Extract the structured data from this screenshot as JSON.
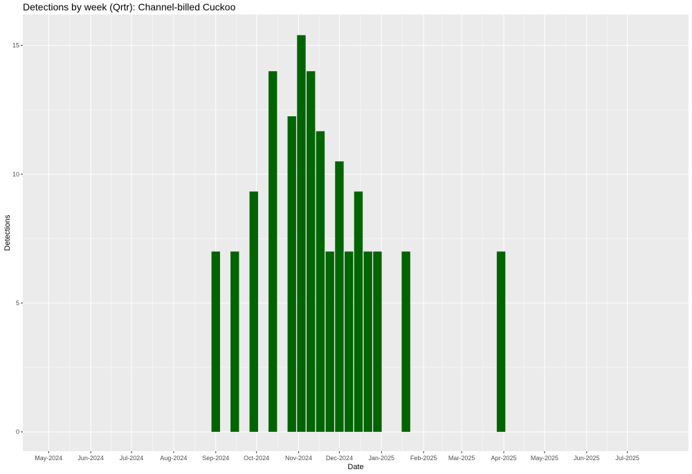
{
  "chart_data": {
    "type": "bar",
    "title": "Detections by week (Qrtr): Channel-billed Cuckoo",
    "xlabel": "Date",
    "ylabel": "Detections",
    "xlim": [
      "2024-04-12",
      "2025-08-15"
    ],
    "ylim": [
      -0.75,
      16.2
    ],
    "y_ticks": [
      0,
      5,
      10,
      15
    ],
    "x_ticks": [
      {
        "date": "2024-05-01",
        "label": "May-2024"
      },
      {
        "date": "2024-06-01",
        "label": "Jun-2024"
      },
      {
        "date": "2024-07-01",
        "label": "Jul-2024"
      },
      {
        "date": "2024-08-01",
        "label": "Aug-2024"
      },
      {
        "date": "2024-09-01",
        "label": "Sep-2024"
      },
      {
        "date": "2024-10-01",
        "label": "Oct-2024"
      },
      {
        "date": "2024-11-01",
        "label": "Nov-2024"
      },
      {
        "date": "2024-12-01",
        "label": "Dec-2024"
      },
      {
        "date": "2025-01-01",
        "label": "Jan-2025"
      },
      {
        "date": "2025-02-01",
        "label": "Feb-2025"
      },
      {
        "date": "2025-03-01",
        "label": "Mar-2025"
      },
      {
        "date": "2025-04-01",
        "label": "Apr-2025"
      },
      {
        "date": "2025-05-01",
        "label": "May-2025"
      },
      {
        "date": "2025-06-01",
        "label": "Jun-2025"
      },
      {
        "date": "2025-07-01",
        "label": "Jul-2025"
      }
    ],
    "grid": true,
    "bar_color": "#006400",
    "panel_background": "#ebebeb",
    "grid_color": "#ffffff",
    "bar_width_days": 6.3,
    "x": [
      "2024-09-01",
      "2024-09-15",
      "2024-09-29",
      "2024-10-13",
      "2024-10-27",
      "2024-11-03",
      "2024-11-10",
      "2024-11-17",
      "2024-11-24",
      "2024-12-01",
      "2024-12-08",
      "2024-12-15",
      "2024-12-22",
      "2024-12-29",
      "2025-01-19",
      "2025-03-30"
    ],
    "values": [
      7,
      7,
      9.33,
      14,
      12.25,
      15.4,
      14,
      11.67,
      7,
      10.5,
      7,
      9.33,
      7,
      7,
      7,
      7
    ]
  }
}
